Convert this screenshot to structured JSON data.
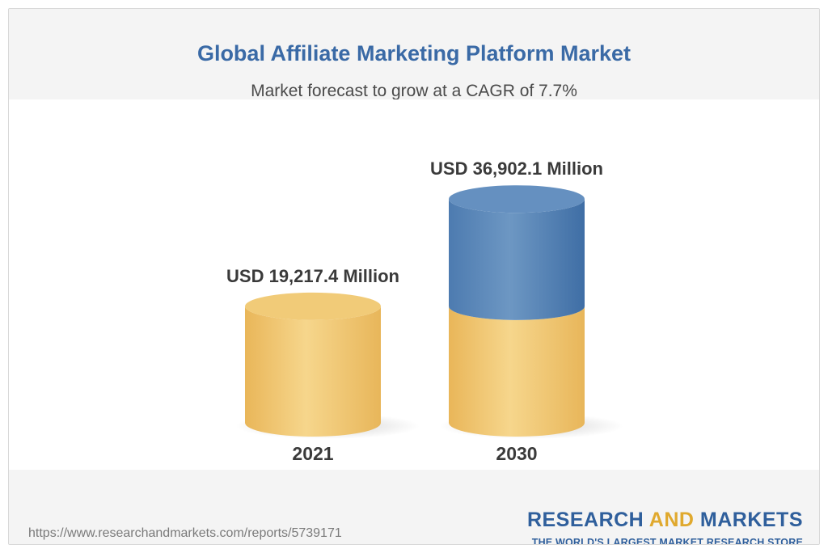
{
  "colors": {
    "title": "#3a6aa6",
    "gold": "#f0c56a",
    "blue": "#5a87b6",
    "brand_blue": "#2f5f9c",
    "brand_gold": "#e0a92e"
  },
  "chart_data": {
    "type": "bar",
    "title": "Global Affiliate Marketing Platform Market",
    "subtitle": "Market forecast to grow at a CAGR of 7.7%",
    "categories": [
      "2021",
      "2030"
    ],
    "values": [
      19217.4,
      36902.1
    ],
    "value_labels": [
      "USD 19,217.4 Million",
      "USD 36,902.1 Million"
    ],
    "ylim": [
      0,
      40000
    ],
    "grid": false,
    "style": "3d-cylinder"
  },
  "footer": {
    "source_url": "https://www.researchandmarkets.com/reports/5739171",
    "brand_research": "RESEARCH",
    "brand_and": "AND",
    "brand_markets": "MARKETS",
    "brand_tagline": "THE WORLD'S LARGEST MARKET RESEARCH STORE"
  }
}
